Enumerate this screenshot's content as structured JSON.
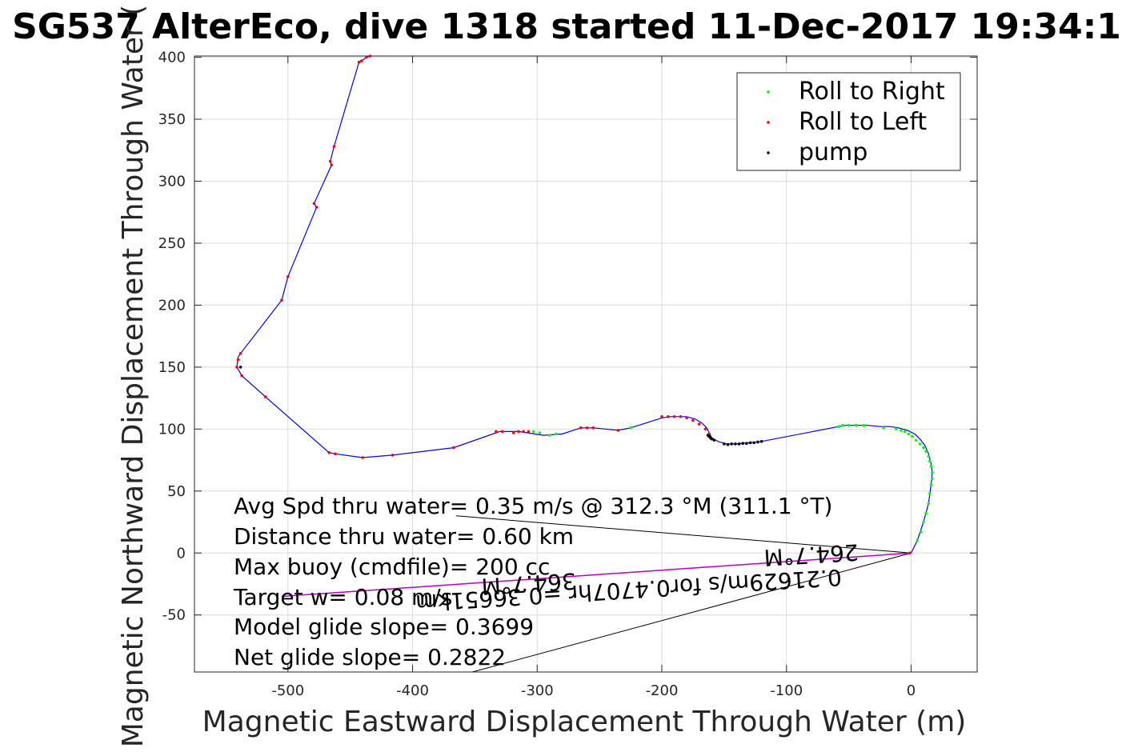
{
  "chart_data": {
    "type": "line",
    "title": "SG537 AlterEco, dive 1318 started 11-Dec-2017 19:34:1",
    "xlabel": "Magnetic Eastward Displacement Through Water (m)",
    "ylabel": "Magnetic Northward Displacement Through Water (",
    "xlim": [
      -575,
      53
    ],
    "ylim": [
      -96,
      401
    ],
    "xticks": [
      -500,
      -400,
      -300,
      -200,
      -100,
      0
    ],
    "yticks": [
      -50,
      0,
      50,
      100,
      150,
      200,
      250,
      300,
      350,
      400
    ],
    "xtick_labels": [
      "-500",
      "-400",
      "-300",
      "-200",
      "-100",
      "0"
    ],
    "ytick_labels": [
      "-50",
      "0",
      "50",
      "100",
      "150",
      "200",
      "250",
      "300",
      "350",
      "400"
    ],
    "grid": true,
    "legend_position": "top-right",
    "legend": [
      {
        "label": "Roll to Right",
        "color": "#00ff00"
      },
      {
        "label": "Roll to Left",
        "color": "#ff0000"
      },
      {
        "label": "pump",
        "color": "#000000"
      }
    ],
    "track": {
      "name": "track",
      "color": "#0000ff",
      "x": [
        0,
        5,
        10,
        14,
        16,
        17,
        16,
        14,
        11,
        7,
        3,
        -3,
        -10,
        -17,
        -25,
        -35,
        -45,
        -52,
        -58,
        -120,
        -130,
        -140,
        -148,
        -155,
        -160,
        -162,
        -164,
        -168,
        -173,
        -180,
        -187,
        -193,
        -200,
        -225,
        -235,
        -255,
        -265,
        -280,
        -295,
        -315,
        -330,
        -367,
        -416,
        -440,
        -462,
        -467,
        -518,
        -537,
        -541,
        -540,
        -538,
        -505,
        -500,
        -477,
        -479,
        -465,
        -466,
        -463,
        -443,
        -441,
        -437,
        -434
      ],
      "y": [
        0,
        10,
        25,
        40,
        55,
        65,
        72,
        80,
        87,
        92,
        96,
        99,
        101,
        102,
        102,
        103,
        103,
        103,
        102,
        90,
        89,
        88,
        88,
        90,
        93,
        97,
        101,
        105,
        108,
        110,
        110,
        110,
        109,
        101,
        99,
        101,
        101,
        96,
        95,
        98,
        98,
        85,
        79,
        77,
        80,
        81,
        126,
        143,
        150,
        158,
        161,
        204,
        223,
        279,
        282,
        313,
        316,
        328,
        396,
        397,
        400,
        401
      ]
    },
    "roll_right": {
      "name": "Roll to Right",
      "color": "#00ff00",
      "x": [
        5,
        8,
        10,
        12,
        14,
        15,
        16,
        17,
        17,
        16,
        15,
        14,
        12,
        10,
        7,
        4,
        1,
        -2,
        -5,
        -8,
        -12,
        -22,
        -38,
        -44,
        -50,
        -55,
        -58,
        -225,
        -285,
        -290,
        -298,
        -303
      ],
      "y": [
        10,
        17,
        25,
        32,
        40,
        48,
        55,
        60,
        65,
        70,
        74,
        78,
        82,
        85,
        88,
        91,
        94,
        96,
        98,
        99,
        100,
        101,
        103,
        103,
        103,
        103,
        102,
        101,
        96,
        95,
        97,
        98
      ]
    },
    "roll_left": {
      "name": "Roll to Left",
      "color": "#ff0000",
      "x": [
        -1,
        -307,
        -311,
        -315,
        -319,
        -328,
        -333,
        -255,
        -260,
        -265,
        -235,
        -200,
        -195,
        -190,
        -185,
        -180,
        -175,
        -170,
        -165,
        -162,
        -537,
        -541,
        -540,
        -538,
        -518,
        -505,
        -500,
        -477,
        -479,
        -465,
        -466,
        -463,
        -443,
        -441,
        -437,
        -434,
        -467,
        -462,
        -440,
        -416,
        -367
      ],
      "y": [
        0,
        98,
        98,
        98,
        97,
        98,
        98,
        101,
        101,
        101,
        99,
        110,
        110,
        110,
        110,
        109,
        107,
        104,
        100,
        96,
        143,
        150,
        156,
        161,
        126,
        204,
        223,
        279,
        282,
        313,
        316,
        328,
        396,
        397,
        400,
        401,
        81,
        80,
        77,
        79,
        85
      ]
    },
    "pump": {
      "name": "pump",
      "color": "#000000",
      "x": [
        -120,
        -123,
        -126,
        -129,
        -132,
        -135,
        -138,
        -141,
        -144,
        -147,
        -150,
        -158,
        -160,
        -161,
        -162,
        -163,
        -538
      ],
      "y": [
        90,
        89.5,
        89,
        89,
        88.5,
        88.5,
        88,
        88,
        88,
        87.5,
        88,
        91,
        92,
        93,
        94,
        95,
        150
      ]
    },
    "annotations": [
      "Avg Spd thru water=  0.35 m/s @ 312.3 °M (311.1 °T)",
      "Distance thru water=  0.60 km",
      "Max buoy (cmdfile)= 200 cc",
      "Target w= 0.08 m/s",
      "Model glide slope= 0.3699",
      "Net glide slope= 0.2822"
    ],
    "flipped_annotations": [
      "0.21629m/s for0.4707hr =0.36651km",
      "264.7°M",
      "364.7°M"
    ]
  }
}
